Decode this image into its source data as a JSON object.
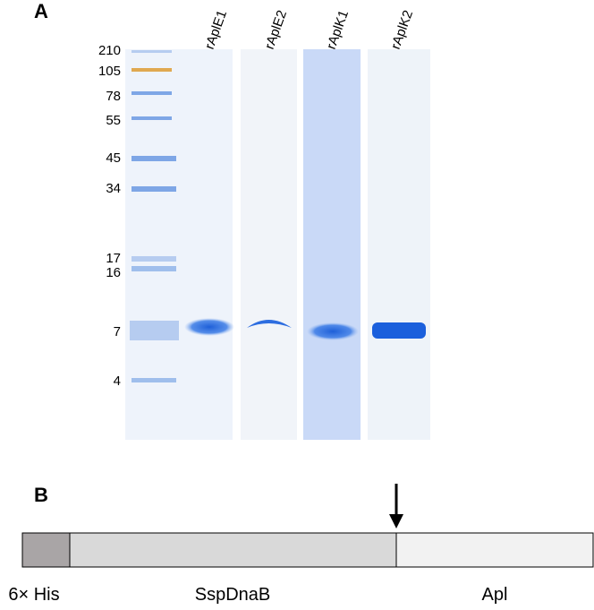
{
  "panel_a": {
    "label": "A",
    "markers": [
      "210",
      "105",
      "78",
      "55",
      "45",
      "34",
      "17",
      "16",
      "7",
      "4"
    ],
    "lanes": [
      "rAplE1",
      "rAplE2",
      "rAplK1",
      "rAplK2"
    ]
  },
  "panel_b": {
    "label": "B",
    "segments": [
      "6× His",
      "SspDnaB",
      "Apl"
    ]
  }
}
